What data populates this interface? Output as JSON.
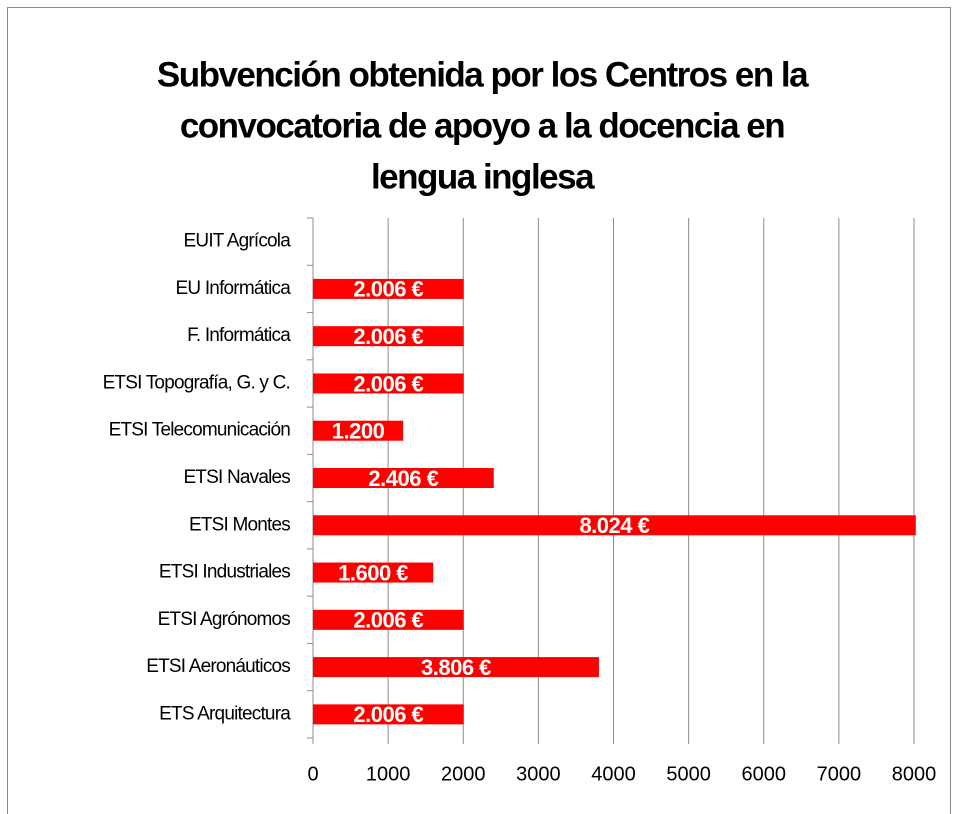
{
  "chart_data": {
    "type": "hbar",
    "title": [
      "Subvención obtenida por los Centros en la",
      "convocatoria de apoyo a la docencia en",
      "lengua inglesa"
    ],
    "categories": [
      "EUIT Agrícola",
      "EU Informática",
      "F. Informática",
      "ETSI Topografía, G. y C.",
      "ETSI Telecomunicación",
      "ETSI Navales",
      "ETSI Montes",
      "ETSI Industriales",
      "ETSI Agrónomos",
      "ETSI Aeronáuticos",
      "ETS Arquitectura"
    ],
    "values": [
      null,
      2006,
      2006,
      2006,
      1200,
      2406,
      8024,
      1600,
      2006,
      3806,
      2006
    ],
    "value_labels": [
      null,
      "2.006 €",
      "2.006 €",
      "2.006 €",
      "1.200",
      "2.406 €",
      "8.024 €",
      "1.600 €",
      "2.006 €",
      "3.806 €",
      "2.006 €"
    ],
    "color": "#ff0000",
    "xlim": [
      0,
      8000
    ],
    "xticks": [
      0,
      1000,
      2000,
      3000,
      4000,
      5000,
      6000,
      7000,
      8000
    ],
    "grid": true
  }
}
